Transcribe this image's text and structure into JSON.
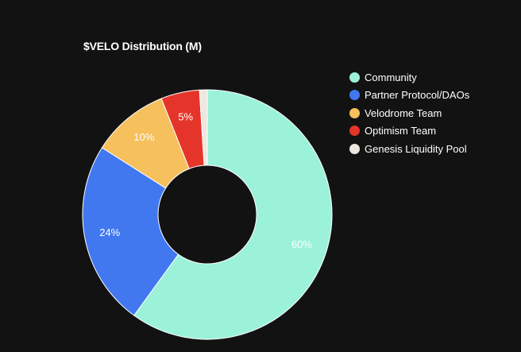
{
  "chart_data": {
    "type": "pie",
    "title": "$VELO Distribution (M)",
    "categories": [
      "Community",
      "Partner Protocol/DAOs",
      "Velodrome Team",
      "Optimism Team",
      "Genesis Liquidity Pool"
    ],
    "values": [
      60,
      24,
      10,
      5,
      1
    ],
    "labels": [
      "60%",
      "24%",
      "10%",
      "5%",
      ""
    ],
    "colors": [
      "#9bf2d9",
      "#4178f0",
      "#f6c05c",
      "#e5352a",
      "#ece8e0"
    ],
    "donut": true,
    "legend_position": "top-right"
  }
}
